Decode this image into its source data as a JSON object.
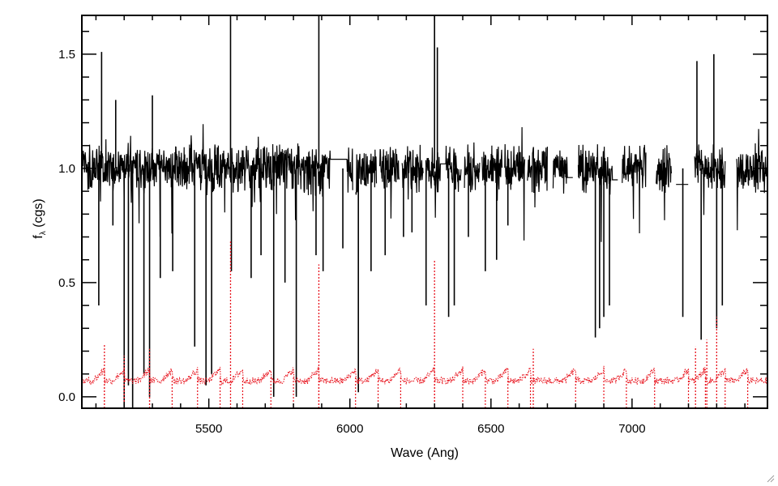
{
  "chart_data": {
    "type": "line",
    "title": "",
    "xlabel": "Wave (Ang)",
    "ylabel_main": "f",
    "ylabel_sub": "λ",
    "ylabel_suffix": "(cgs)",
    "xlim": [
      5050,
      7480
    ],
    "ylim": [
      -0.05,
      1.67
    ],
    "xticks": [
      5500,
      6000,
      6500,
      7000
    ],
    "xtick_labels": [
      "5500",
      "6000",
      "6500",
      "7000"
    ],
    "yticks": [
      0.0,
      0.5,
      1.0,
      1.5
    ],
    "ytick_labels": [
      "0.0",
      "0.5",
      "1.0",
      "1.5"
    ],
    "x_minor_step": 100,
    "y_minor_step": 0.1,
    "grid": false,
    "legend": "none",
    "series": [
      {
        "color": "#000000",
        "style": "solid",
        "x_range": [
          5050,
          7480
        ],
        "baseline": 1.0,
        "noise_amplitude": 0.08,
        "absorption_lines": [
          {
            "x": 5110,
            "y": 0.4
          },
          {
            "x": 5160,
            "y": 0.75
          },
          {
            "x": 5200,
            "y": -0.05
          },
          {
            "x": 5215,
            "y": 0.05
          },
          {
            "x": 5230,
            "y": -0.05
          },
          {
            "x": 5270,
            "y": 0.1
          },
          {
            "x": 5290,
            "y": 0.0
          },
          {
            "x": 5328,
            "y": 0.52
          },
          {
            "x": 5372,
            "y": 0.55
          },
          {
            "x": 5450,
            "y": 0.22
          },
          {
            "x": 5490,
            "y": 0.05
          },
          {
            "x": 5510,
            "y": 0.1
          },
          {
            "x": 5580,
            "y": 0.55
          },
          {
            "x": 5650,
            "y": 0.52
          },
          {
            "x": 5685,
            "y": 0.62
          },
          {
            "x": 5730,
            "y": 0.0
          },
          {
            "x": 5770,
            "y": 0.5
          },
          {
            "x": 5810,
            "y": 0.0
          },
          {
            "x": 5880,
            "y": 0.62
          },
          {
            "x": 5905,
            "y": 0.55
          },
          {
            "x": 5975,
            "y": 0.65
          },
          {
            "x": 6030,
            "y": 0.02
          },
          {
            "x": 6075,
            "y": 0.55
          },
          {
            "x": 6125,
            "y": 0.62
          },
          {
            "x": 6190,
            "y": 0.7
          },
          {
            "x": 6220,
            "y": 0.72
          },
          {
            "x": 6270,
            "y": 0.4
          },
          {
            "x": 6350,
            "y": 0.35
          },
          {
            "x": 6370,
            "y": 0.4
          },
          {
            "x": 6420,
            "y": 0.7
          },
          {
            "x": 6480,
            "y": 0.55
          },
          {
            "x": 6520,
            "y": 0.6
          },
          {
            "x": 6560,
            "y": 0.75
          },
          {
            "x": 6870,
            "y": 0.26
          },
          {
            "x": 6885,
            "y": 0.3
          },
          {
            "x": 6900,
            "y": 0.35
          },
          {
            "x": 6920,
            "y": 0.4
          },
          {
            "x": 7180,
            "y": 0.35
          },
          {
            "x": 7245,
            "y": 0.25
          },
          {
            "x": 7300,
            "y": 0.3
          },
          {
            "x": 7320,
            "y": 0.4
          }
        ],
        "emission_lines": [
          {
            "x": 5120,
            "y": 1.51
          },
          {
            "x": 5170,
            "y": 1.3
          },
          {
            "x": 5300,
            "y": 1.32
          },
          {
            "x": 5577,
            "y": 1.67
          },
          {
            "x": 5890,
            "y": 1.67
          },
          {
            "x": 6300,
            "y": 1.67
          },
          {
            "x": 6310,
            "y": 1.53
          },
          {
            "x": 7230,
            "y": 1.47
          },
          {
            "x": 7290,
            "y": 1.5
          }
        ],
        "gaps": [
          [
            6010,
            6020
          ],
          [
            6095,
            6105
          ],
          [
            6175,
            6185
          ],
          [
            6260,
            6268
          ],
          [
            6395,
            6405
          ],
          [
            6460,
            6468
          ],
          [
            6540,
            6548
          ],
          [
            6620,
            6628
          ],
          [
            6700,
            6720
          ],
          [
            6790,
            6808
          ],
          [
            6950,
            6965
          ],
          [
            7050,
            7085
          ],
          [
            7140,
            7155
          ],
          [
            7200,
            7220
          ],
          [
            7330,
            7370
          ]
        ],
        "flat_segments": [
          {
            "x": [
              5930,
              5990
            ],
            "y": 1.04
          },
          {
            "x": [
              6320,
              6340
            ],
            "y": 1.02
          },
          {
            "x": [
              6770,
              6790
            ],
            "y": 0.96
          },
          {
            "x": [
              6930,
              6960
            ],
            "y": 0.95
          },
          {
            "x": [
              7150,
              7200
            ],
            "y": 0.93
          },
          {
            "x": [
              7335,
              7370
            ],
            "y": 1.0
          }
        ]
      },
      {
        "color": "#e8141e",
        "style": "dotted",
        "x_range": [
          5050,
          7480
        ],
        "baseline": 0.07,
        "noise_amplitude": 0.015,
        "segment_boundaries": [
          5130,
          5200,
          5290,
          5370,
          5460,
          5540,
          5620,
          5720,
          5800,
          5890,
          6020,
          6100,
          6180,
          6300,
          6400,
          6480,
          6560,
          6640,
          6800,
          6900,
          6980,
          7080,
          7200,
          7260,
          7330,
          7410
        ],
        "spikes": [
          {
            "x": 5130,
            "y": 0.23
          },
          {
            "x": 5200,
            "y": 0.18
          },
          {
            "x": 5290,
            "y": 0.21
          },
          {
            "x": 5577,
            "y": 0.68
          },
          {
            "x": 5890,
            "y": 0.58
          },
          {
            "x": 6300,
            "y": 0.6
          },
          {
            "x": 6650,
            "y": 0.21
          },
          {
            "x": 7225,
            "y": 0.22
          },
          {
            "x": 7265,
            "y": 0.25
          },
          {
            "x": 7300,
            "y": 0.35
          }
        ]
      }
    ]
  }
}
